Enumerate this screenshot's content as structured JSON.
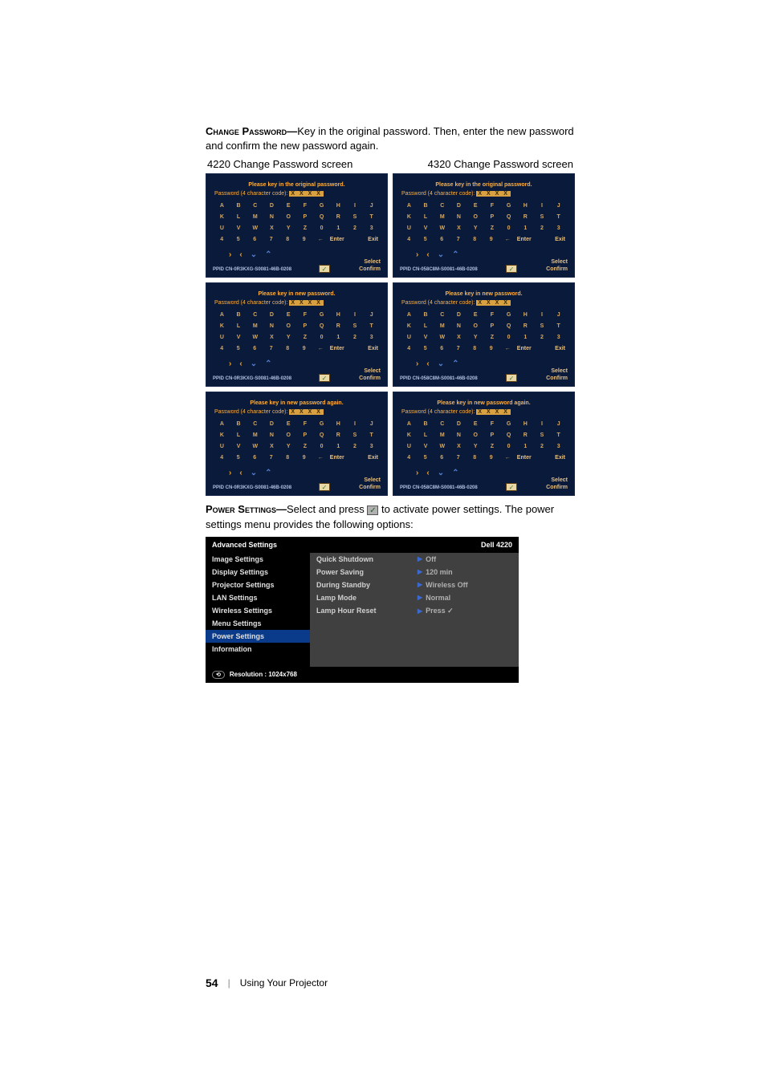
{
  "paragraphs": {
    "change_pw_label": "Change Password—",
    "change_pw_text": "Key in the original password. Then, enter the new password and confirm the new password again.",
    "caption_left": "4220 Change Password screen",
    "caption_right": "4320 Change Password screen",
    "power_label": "Power Settings—",
    "power_text_a": "Select and press ",
    "power_text_b": " to activate power settings. The power settings menu provides the following options:"
  },
  "keyboard": {
    "titles": {
      "orig": "Please key in the original password.",
      "new": "Please key in new password.",
      "again": "Please key in new password again."
    },
    "sub_label": "Password (4 character code):",
    "sub_x": "X X X X",
    "rows": [
      [
        "A",
        "B",
        "C",
        "D",
        "E",
        "F",
        "G",
        "H",
        "I",
        "J"
      ],
      [
        "K",
        "L",
        "M",
        "N",
        "O",
        "P",
        "Q",
        "R",
        "S",
        "T"
      ],
      [
        "U",
        "V",
        "W",
        "X",
        "Y",
        "Z",
        "0",
        "1",
        "2",
        "3"
      ],
      [
        "4",
        "5",
        "6",
        "7",
        "8",
        "9",
        "←",
        "Enter",
        "",
        "Exit"
      ]
    ],
    "select": "Select",
    "confirm": "Confirm",
    "ppid_label": "PPID",
    "ppid_4220": "CN-0R3KXG-S0081-46B-0208",
    "ppid_4320": "CN-058C8M-S0081-46B-0208"
  },
  "adv_menu": {
    "title": "Advanced Settings",
    "model": "Dell 4220",
    "left": [
      "Image Settings",
      "Display Settings",
      "Projector Settings",
      "LAN Settings",
      "Wireless Settings",
      "Menu Settings",
      "Power Settings",
      "Information"
    ],
    "active_index": 6,
    "mid": [
      "Quick Shutdown",
      "Power Saving",
      "During Standby",
      "Lamp Mode",
      "Lamp Hour Reset"
    ],
    "right": [
      "Off",
      "120 min",
      "Wireless Off",
      "Normal",
      "Press  ✓"
    ],
    "footer_label": "Resolution : 1024x768"
  },
  "footer": {
    "page": "54",
    "section": "Using Your Projector"
  },
  "colors": {
    "panel_bg": "#0a1a3a",
    "panel_accent": "#ffb040",
    "menu_active": "#0a3a8a"
  }
}
